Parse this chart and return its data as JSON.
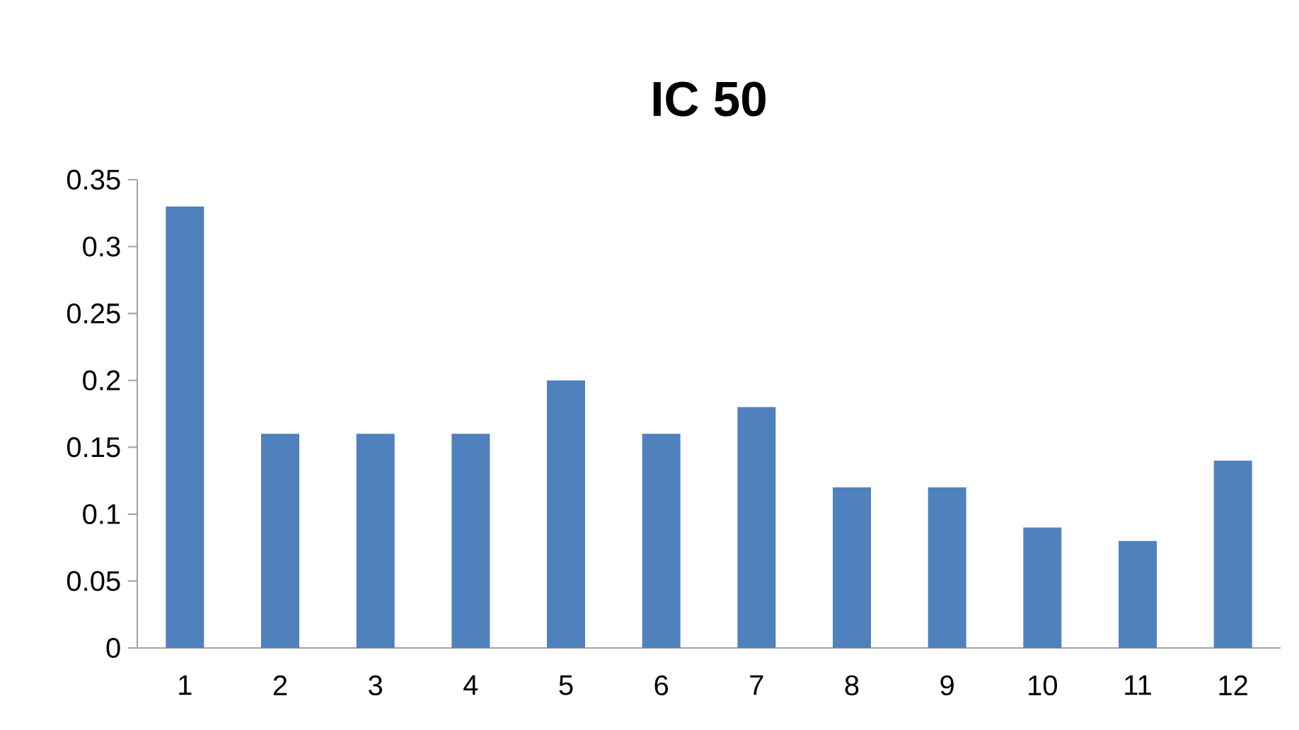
{
  "chart_data": {
    "type": "bar",
    "title": "IC 50",
    "categories": [
      "1",
      "2",
      "3",
      "4",
      "5",
      "6",
      "7",
      "8",
      "9",
      "10",
      "11",
      "12"
    ],
    "values": [
      0.33,
      0.16,
      0.16,
      0.16,
      0.2,
      0.16,
      0.18,
      0.12,
      0.12,
      0.09,
      0.08,
      0.14
    ],
    "color": "#4f81bd",
    "ylim": [
      0,
      0.35
    ],
    "yticks": [
      0,
      0.05,
      0.1,
      0.15,
      0.2,
      0.25,
      0.3,
      0.35
    ]
  }
}
